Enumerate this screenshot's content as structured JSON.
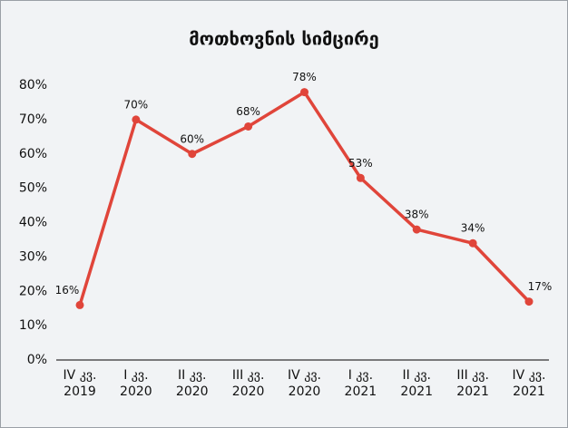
{
  "chart_data": {
    "type": "line",
    "title": "მოთხოვნის სიმცირე",
    "categories": [
      [
        "IV კვ.",
        "2019"
      ],
      [
        "I კვ.",
        "2020"
      ],
      [
        "II კვ.",
        "2020"
      ],
      [
        "III კვ.",
        "2020"
      ],
      [
        "IV კვ.",
        "2020"
      ],
      [
        "I კვ.",
        "2021"
      ],
      [
        "II კვ.",
        "2021"
      ],
      [
        "III კვ.",
        "2021"
      ],
      [
        "IV კვ.",
        "2021"
      ]
    ],
    "values": [
      16,
      70,
      60,
      68,
      78,
      53,
      38,
      34,
      17
    ],
    "value_labels": [
      "16%",
      "70%",
      "60%",
      "68%",
      "78%",
      "53%",
      "38%",
      "34%",
      "17%"
    ],
    "color": "#e0453a",
    "ylim": [
      0,
      80
    ],
    "yticks": [
      {
        "value": 0,
        "label": "0%"
      },
      {
        "value": 10,
        "label": "10%"
      },
      {
        "value": 20,
        "label": "20%"
      },
      {
        "value": 30,
        "label": "30%"
      },
      {
        "value": 40,
        "label": "40%"
      },
      {
        "value": 50,
        "label": "50%"
      },
      {
        "value": 60,
        "label": "60%"
      },
      {
        "value": 70,
        "label": "70%"
      },
      {
        "value": 80,
        "label": "80%"
      }
    ],
    "grid": false
  }
}
